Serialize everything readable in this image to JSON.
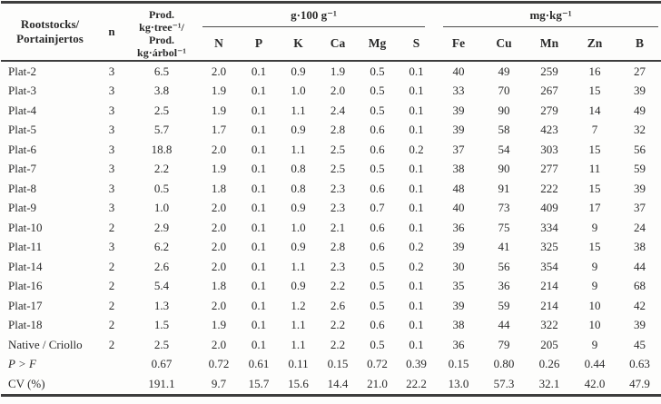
{
  "table": {
    "header": {
      "rootstocks_line1": "Rootstocks/",
      "rootstocks_line2": "Portainjertos",
      "n": "n",
      "prod_line1": "Prod.",
      "prod_line2": "kg·tree⁻¹/",
      "prod_line3": "Prod.",
      "prod_line4": "kg·árbol⁻¹",
      "group1": "g·100 g⁻¹",
      "group2": "mg·kg⁻¹",
      "sub": [
        "N",
        "P",
        "K",
        "Ca",
        "Mg",
        "S",
        "Fe",
        "Cu",
        "Mn",
        "Zn",
        "B"
      ]
    },
    "rows": [
      {
        "label": "Plat-2",
        "italic": false,
        "n": "3",
        "values": [
          "6.5",
          "2.0",
          "0.1",
          "0.9",
          "1.9",
          "0.5",
          "0.1",
          "40",
          "49",
          "259",
          "16",
          "27"
        ]
      },
      {
        "label": "Plat-3",
        "italic": false,
        "n": "3",
        "values": [
          "3.8",
          "1.9",
          "0.1",
          "1.0",
          "2.0",
          "0.5",
          "0.1",
          "33",
          "70",
          "267",
          "15",
          "39"
        ]
      },
      {
        "label": "Plat-4",
        "italic": false,
        "n": "3",
        "values": [
          "2.5",
          "1.9",
          "0.1",
          "1.1",
          "2.4",
          "0.5",
          "0.1",
          "39",
          "90",
          "279",
          "14",
          "49"
        ]
      },
      {
        "label": "Plat-5",
        "italic": false,
        "n": "3",
        "values": [
          "5.7",
          "1.7",
          "0.1",
          "0.9",
          "2.8",
          "0.6",
          "0.1",
          "39",
          "58",
          "423",
          "7",
          "32"
        ]
      },
      {
        "label": "Plat-6",
        "italic": false,
        "n": "3",
        "values": [
          "18.8",
          "2.0",
          "0.1",
          "1.1",
          "2.5",
          "0.6",
          "0.2",
          "37",
          "54",
          "303",
          "15",
          "56"
        ]
      },
      {
        "label": "Plat-7",
        "italic": false,
        "n": "3",
        "values": [
          "2.2",
          "1.9",
          "0.1",
          "0.8",
          "2.5",
          "0.5",
          "0.1",
          "38",
          "90",
          "277",
          "11",
          "59"
        ]
      },
      {
        "label": "Plat-8",
        "italic": false,
        "n": "3",
        "values": [
          "0.5",
          "1.8",
          "0.1",
          "0.8",
          "2.3",
          "0.6",
          "0.1",
          "48",
          "91",
          "222",
          "15",
          "39"
        ]
      },
      {
        "label": "Plat-9",
        "italic": false,
        "n": "3",
        "values": [
          "1.0",
          "2.0",
          "0.1",
          "0.9",
          "2.3",
          "0.7",
          "0.1",
          "40",
          "73",
          "409",
          "17",
          "37"
        ]
      },
      {
        "label": "Plat-10",
        "italic": false,
        "n": "2",
        "values": [
          "2.9",
          "2.0",
          "0.1",
          "1.0",
          "2.1",
          "0.6",
          "0.1",
          "36",
          "75",
          "334",
          "9",
          "24"
        ]
      },
      {
        "label": "Plat-11",
        "italic": false,
        "n": "3",
        "values": [
          "6.2",
          "2.0",
          "0.1",
          "0.9",
          "2.8",
          "0.6",
          "0.2",
          "39",
          "41",
          "325",
          "15",
          "38"
        ]
      },
      {
        "label": "Plat-14",
        "italic": false,
        "n": "2",
        "values": [
          "2.6",
          "2.0",
          "0.1",
          "1.1",
          "2.3",
          "0.5",
          "0.2",
          "30",
          "56",
          "354",
          "9",
          "44"
        ]
      },
      {
        "label": "Plat-16",
        "italic": false,
        "n": "2",
        "values": [
          "5.4",
          "1.8",
          "0.1",
          "0.9",
          "2.2",
          "0.5",
          "0.1",
          "35",
          "36",
          "214",
          "9",
          "68"
        ]
      },
      {
        "label": "Plat-17",
        "italic": false,
        "n": "2",
        "values": [
          "1.3",
          "2.0",
          "0.1",
          "1.2",
          "2.6",
          "0.5",
          "0.1",
          "39",
          "59",
          "214",
          "10",
          "42"
        ]
      },
      {
        "label": "Plat-18",
        "italic": false,
        "n": "2",
        "values": [
          "1.5",
          "1.9",
          "0.1",
          "1.1",
          "2.2",
          "0.6",
          "0.1",
          "38",
          "44",
          "322",
          "10",
          "39"
        ]
      },
      {
        "label": "Native / Criollo",
        "italic": false,
        "n": "2",
        "values": [
          "2.5",
          "2.0",
          "0.1",
          "1.1",
          "2.2",
          "0.5",
          "0.1",
          "36",
          "79",
          "205",
          "9",
          "45"
        ]
      },
      {
        "label": "P > F",
        "italic": true,
        "n": "",
        "values": [
          "0.67",
          "0.72",
          "0.61",
          "0.11",
          "0.15",
          "0.72",
          "0.39",
          "0.15",
          "0.80",
          "0.26",
          "0.44",
          "0.63"
        ]
      },
      {
        "label": "CV (%)",
        "italic": false,
        "n": "",
        "values": [
          "191.1",
          "9.7",
          "15.7",
          "15.6",
          "14.4",
          "21.0",
          "22.2",
          "13.0",
          "57.3",
          "32.1",
          "42.0",
          "47.9"
        ]
      }
    ]
  }
}
